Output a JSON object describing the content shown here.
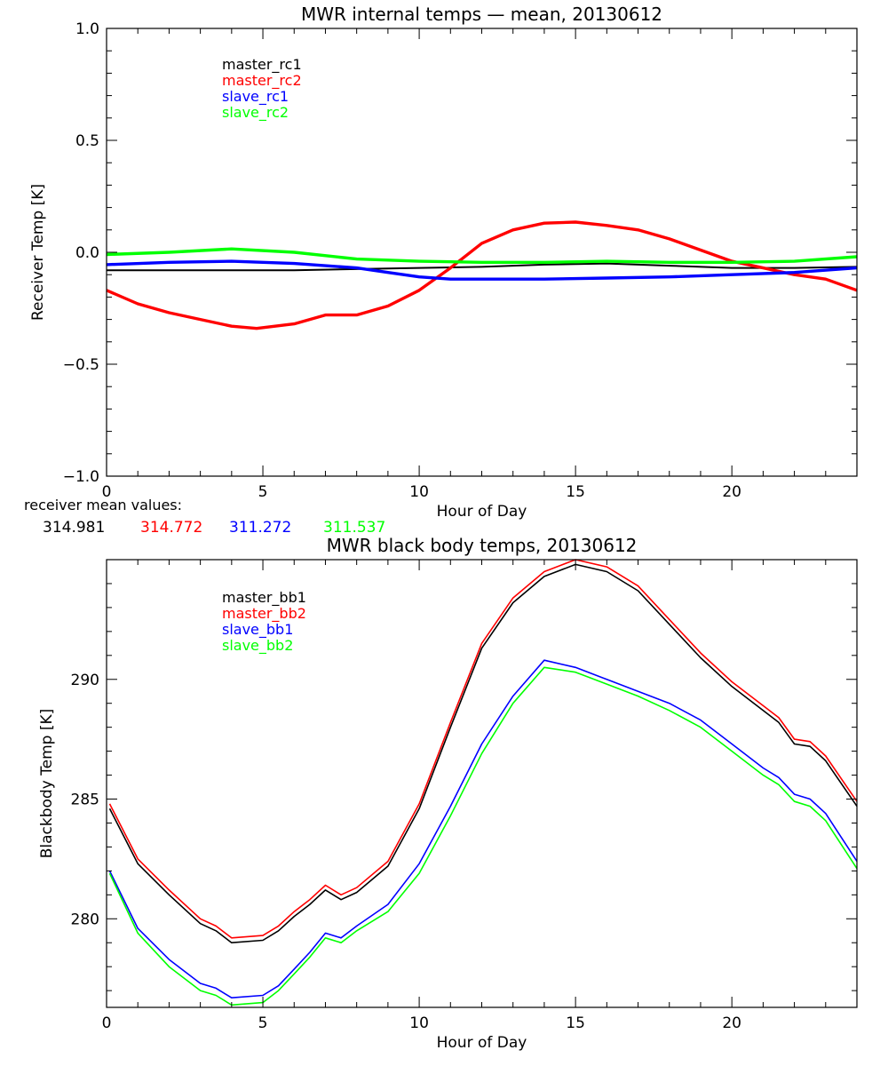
{
  "colors": {
    "black": "#000000",
    "red": "#ff0000",
    "blue": "#0000ff",
    "green": "#00ff00"
  },
  "mean_values_label": "receiver mean values:",
  "mean_values": [
    {
      "text": "314.981",
      "color": "#000000"
    },
    {
      "text": "314.772",
      "color": "#ff0000"
    },
    {
      "text": "311.272",
      "color": "#0000ff"
    },
    {
      "text": "311.537",
      "color": "#00ff00"
    }
  ],
  "chart_data": [
    {
      "type": "line",
      "title": "MWR internal temps — mean, 20130612",
      "xlabel": "Hour of Day",
      "ylabel": "Receiver Temp [K]",
      "xlim": [
        0,
        24
      ],
      "ylim": [
        -1.0,
        1.0
      ],
      "xticks": [
        0,
        5,
        10,
        15,
        20
      ],
      "xtick_labels": [
        "0",
        "5",
        "10",
        "15",
        "20"
      ],
      "yticks": [
        -1.0,
        -0.5,
        0.0,
        0.5,
        1.0
      ],
      "ytick_labels": [
        "−1.0",
        "−0.5",
        "0.0",
        "0.5",
        "1.0"
      ],
      "legend_position": "top-left",
      "series": [
        {
          "name": "master_rc1",
          "color": "#000000",
          "x": [
            0,
            2,
            4,
            6,
            8,
            10,
            12,
            14,
            16,
            18,
            20,
            22,
            24
          ],
          "y": [
            -0.08,
            -0.08,
            -0.08,
            -0.08,
            -0.075,
            -0.07,
            -0.065,
            -0.055,
            -0.05,
            -0.06,
            -0.07,
            -0.07,
            -0.065
          ]
        },
        {
          "name": "master_rc2",
          "color": "#ff0000",
          "x": [
            0,
            1,
            2,
            3,
            4,
            4.8,
            6,
            7,
            8,
            9,
            10,
            11,
            12,
            13,
            14,
            15,
            16,
            17,
            18,
            19,
            20,
            21,
            22,
            23,
            24
          ],
          "y": [
            -0.17,
            -0.23,
            -0.27,
            -0.3,
            -0.33,
            -0.34,
            -0.32,
            -0.28,
            -0.28,
            -0.24,
            -0.17,
            -0.07,
            0.04,
            0.1,
            0.13,
            0.135,
            0.12,
            0.1,
            0.06,
            0.01,
            -0.04,
            -0.07,
            -0.1,
            -0.12,
            -0.17
          ]
        },
        {
          "name": "slave_rc1",
          "color": "#0000ff",
          "x": [
            0,
            2,
            4,
            6,
            8,
            9,
            10,
            11,
            12,
            14,
            16,
            18,
            20,
            22,
            24
          ],
          "y": [
            -0.055,
            -0.045,
            -0.04,
            -0.05,
            -0.07,
            -0.09,
            -0.11,
            -0.12,
            -0.12,
            -0.12,
            -0.115,
            -0.11,
            -0.1,
            -0.09,
            -0.07
          ]
        },
        {
          "name": "slave_rc2",
          "color": "#00ff00",
          "x": [
            0,
            2,
            4,
            6,
            8,
            10,
            12,
            14,
            16,
            18,
            20,
            22,
            24
          ],
          "y": [
            -0.01,
            0.0,
            0.015,
            0.0,
            -0.03,
            -0.04,
            -0.045,
            -0.045,
            -0.04,
            -0.045,
            -0.045,
            -0.04,
            -0.02
          ]
        }
      ]
    },
    {
      "type": "line",
      "title": "MWR black body temps, 20130612",
      "xlabel": "Hour of Day",
      "ylabel": "Blackbody Temp [K]",
      "xlim": [
        0,
        24
      ],
      "ylim": [
        276.3,
        295.0
      ],
      "xticks": [
        0,
        5,
        10,
        15,
        20
      ],
      "xtick_labels": [
        "0",
        "5",
        "10",
        "15",
        "20"
      ],
      "yticks": [
        280,
        285,
        290
      ],
      "ytick_labels": [
        "280",
        "285",
        "290"
      ],
      "legend_position": "top-left",
      "series": [
        {
          "name": "master_bb1",
          "color": "#000000",
          "x": [
            0.1,
            1,
            2,
            3,
            3.5,
            4,
            5,
            5.5,
            6,
            6.5,
            7,
            7.5,
            8,
            9,
            10,
            11,
            12,
            13,
            14,
            15,
            16,
            17,
            18,
            19,
            20,
            21,
            21.5,
            22,
            22.5,
            23,
            24
          ],
          "y": [
            284.6,
            282.3,
            281.0,
            279.8,
            279.5,
            279.0,
            279.1,
            279.5,
            280.1,
            280.6,
            281.2,
            280.8,
            281.1,
            282.2,
            284.6,
            288.0,
            291.3,
            293.2,
            294.3,
            294.8,
            294.5,
            293.7,
            292.3,
            290.9,
            289.7,
            288.7,
            288.2,
            287.3,
            287.2,
            286.6,
            284.7
          ]
        },
        {
          "name": "master_bb2",
          "color": "#ff0000",
          "x": [
            0.1,
            1,
            2,
            3,
            3.5,
            4,
            5,
            5.5,
            6,
            6.5,
            7,
            7.5,
            8,
            9,
            10,
            11,
            12,
            13,
            14,
            15,
            16,
            17,
            18,
            19,
            20,
            21,
            21.5,
            22,
            22.5,
            23,
            24
          ],
          "y": [
            284.8,
            282.5,
            281.2,
            280.0,
            279.7,
            279.2,
            279.3,
            279.7,
            280.3,
            280.8,
            281.4,
            281.0,
            281.3,
            282.4,
            284.8,
            288.2,
            291.5,
            293.4,
            294.5,
            295.0,
            294.7,
            293.9,
            292.5,
            291.1,
            289.9,
            288.9,
            288.4,
            287.5,
            287.4,
            286.8,
            284.9
          ]
        },
        {
          "name": "slave_bb1",
          "color": "#0000ff",
          "x": [
            0.1,
            1,
            2,
            3,
            3.5,
            4,
            5,
            5.5,
            6,
            6.5,
            7,
            7.5,
            8,
            9,
            10,
            11,
            12,
            13,
            14,
            15,
            16,
            17,
            18,
            19,
            20,
            21,
            21.5,
            22,
            22.5,
            23,
            24
          ],
          "y": [
            282.0,
            279.6,
            278.3,
            277.3,
            277.1,
            276.7,
            276.8,
            277.2,
            277.9,
            278.6,
            279.4,
            279.2,
            279.7,
            280.6,
            282.3,
            284.7,
            287.3,
            289.3,
            290.8,
            290.5,
            290.0,
            289.5,
            289.0,
            288.3,
            287.3,
            286.3,
            285.9,
            285.2,
            285.0,
            284.4,
            282.4
          ]
        },
        {
          "name": "slave_bb2",
          "color": "#00ff00",
          "x": [
            0.1,
            1,
            2,
            3,
            3.5,
            4,
            5,
            5.5,
            6,
            6.5,
            7,
            7.5,
            8,
            9,
            10,
            11,
            12,
            13,
            14,
            15,
            16,
            17,
            18,
            19,
            20,
            21,
            21.5,
            22,
            22.5,
            23,
            24
          ],
          "y": [
            281.9,
            279.4,
            278.0,
            277.0,
            276.8,
            276.4,
            276.5,
            277.0,
            277.7,
            278.4,
            279.2,
            279.0,
            279.5,
            280.3,
            281.9,
            284.3,
            286.9,
            289.0,
            290.5,
            290.3,
            289.8,
            289.3,
            288.7,
            288.0,
            287.0,
            286.0,
            285.6,
            284.9,
            284.7,
            284.1,
            282.1
          ]
        }
      ]
    }
  ]
}
